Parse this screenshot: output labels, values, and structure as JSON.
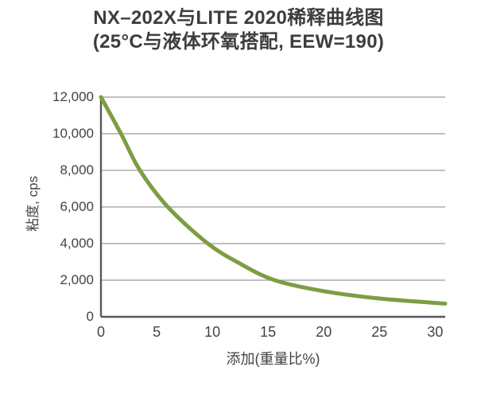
{
  "title": {
    "line1": "NX–202X与LITE 2020稀释曲线图",
    "line2": "(25°C与液体环氧搭配, EEW=190)"
  },
  "chart_data": {
    "type": "line",
    "title": "NX–202X与LITE 2020稀释曲线图 (25°C与液体环氧搭配, EEW=190)",
    "xlabel": "添加(重量比%)",
    "ylabel": "粘度, cps",
    "xlim": [
      0,
      30.9
    ],
    "ylim": [
      0,
      12000
    ],
    "x_ticks": [
      0,
      5,
      10,
      15,
      20,
      25,
      30
    ],
    "y_ticks": [
      0,
      2000,
      4000,
      6000,
      8000,
      10000,
      12000
    ],
    "y_tick_labels": [
      "0",
      "2,000",
      "4,000",
      "6,000",
      "8,000",
      "10,000",
      "12,000"
    ],
    "grid": "horizontal",
    "legend": false,
    "series": [
      {
        "name": "NX-202X / LITE 2020 dilution curve",
        "color": "#7e9d43",
        "points": [
          {
            "x": 0,
            "y": 12000
          },
          {
            "x": 1.8,
            "y": 10000
          },
          {
            "x": 3.5,
            "y": 8000
          },
          {
            "x": 6.0,
            "y": 6000
          },
          {
            "x": 9.6,
            "y": 4000
          },
          {
            "x": 12.5,
            "y": 2900
          },
          {
            "x": 15.6,
            "y": 2000
          },
          {
            "x": 20,
            "y": 1400
          },
          {
            "x": 25,
            "y": 1000
          },
          {
            "x": 30.9,
            "y": 720
          }
        ]
      }
    ]
  },
  "colors": {
    "curve": "#7e9d43",
    "axis": "#58595b",
    "gridline": "#9b9b9b",
    "text": "#3d3d3f",
    "background": "#ffffff"
  }
}
